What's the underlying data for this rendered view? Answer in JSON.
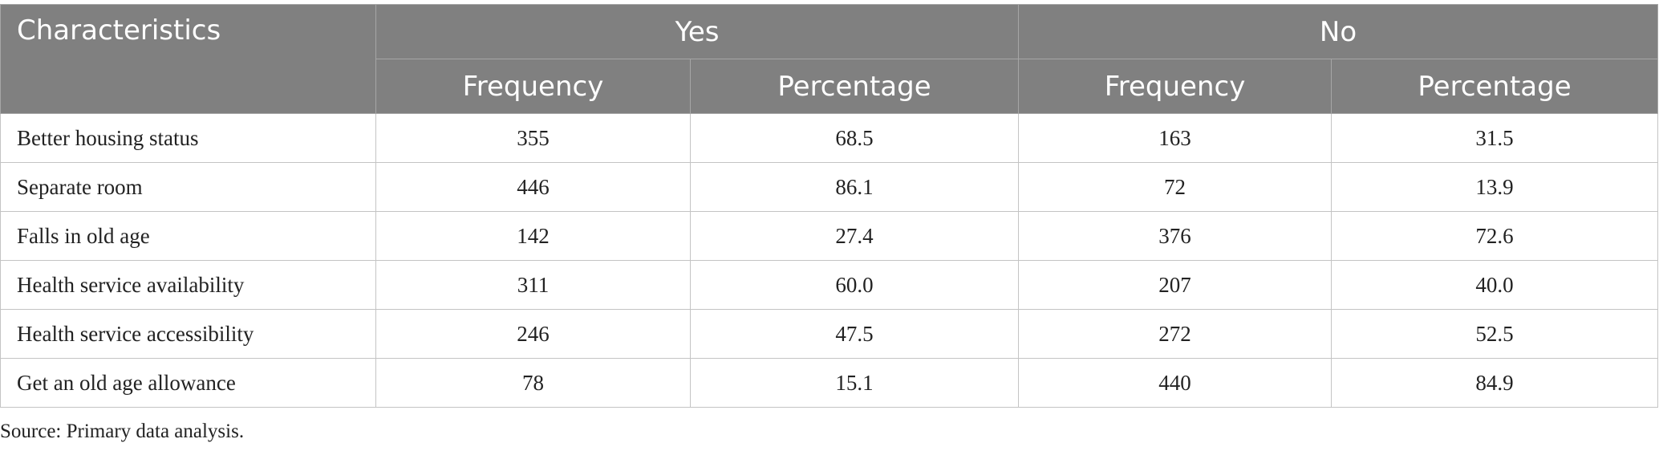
{
  "table": {
    "header": {
      "characteristics": "Characteristics",
      "groups": [
        "Yes",
        "No"
      ],
      "subheaders": [
        "Frequency",
        "Percentage",
        "Frequency",
        "Percentage"
      ]
    },
    "rows": [
      [
        "Better housing status",
        "355",
        "68.5",
        "163",
        "31.5"
      ],
      [
        "Separate room",
        "446",
        "86.1",
        "72",
        "13.9"
      ],
      [
        "Falls in old age",
        "142",
        "27.4",
        "376",
        "72.6"
      ],
      [
        "Health service availability",
        "311",
        "60.0",
        "207",
        "40.0"
      ],
      [
        "Health service accessibility",
        "246",
        "47.5",
        "272",
        "52.5"
      ],
      [
        "Get an old age allowance",
        "78",
        "15.1",
        "440",
        "84.9"
      ]
    ]
  },
  "source": "Source: Primary data analysis."
}
